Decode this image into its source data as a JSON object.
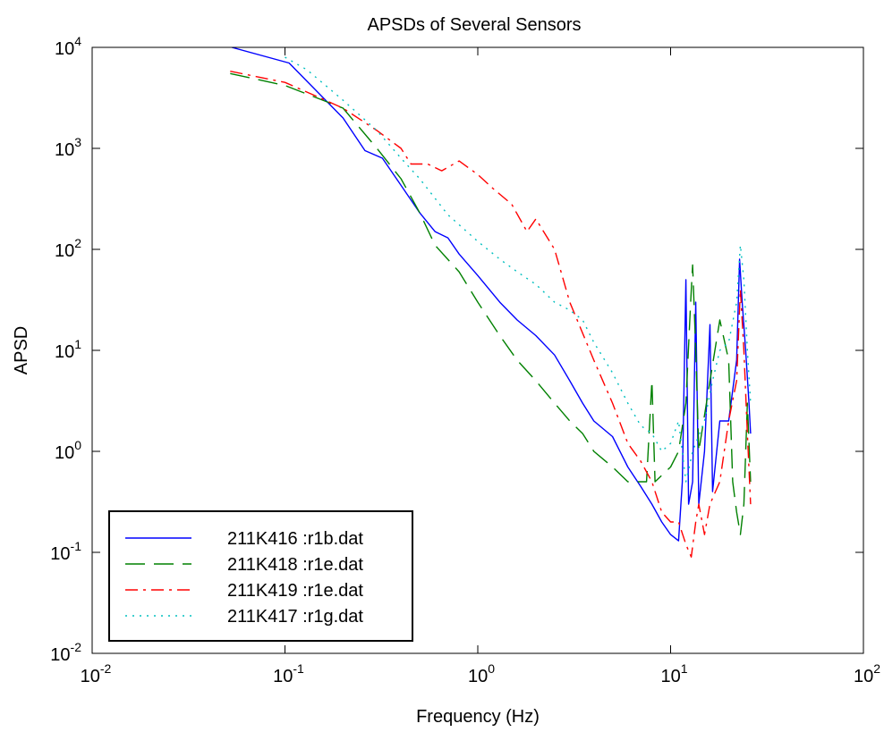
{
  "chart_data": {
    "type": "line",
    "title": "APSDs of Several Sensors",
    "xlabel": "Frequency (Hz)",
    "ylabel": "APSD",
    "xscale": "log",
    "yscale": "log",
    "xlim": [
      0.01,
      100
    ],
    "ylim": [
      0.01,
      10000
    ],
    "x_ticks": [
      {
        "value": 0.01,
        "base": "10",
        "exp": "-2"
      },
      {
        "value": 0.1,
        "base": "10",
        "exp": "-1"
      },
      {
        "value": 1,
        "base": "10",
        "exp": "0"
      },
      {
        "value": 10,
        "base": "10",
        "exp": "1"
      },
      {
        "value": 100,
        "base": "10",
        "exp": "2"
      }
    ],
    "y_ticks": [
      {
        "value": 0.01,
        "base": "10",
        "exp": "-2"
      },
      {
        "value": 0.1,
        "base": "10",
        "exp": "-1"
      },
      {
        "value": 1,
        "base": "10",
        "exp": "0"
      },
      {
        "value": 10,
        "base": "10",
        "exp": "1"
      },
      {
        "value": 100,
        "base": "10",
        "exp": "2"
      },
      {
        "value": 1000,
        "base": "10",
        "exp": "3"
      },
      {
        "value": 10000,
        "base": "10",
        "exp": "4"
      }
    ],
    "grid": false,
    "legend_position": "bottom-left",
    "series": [
      {
        "name": "211K416 :r1b.dat",
        "color": "#0000ff",
        "dash": "solid",
        "points": [
          [
            0.053,
            10000
          ],
          [
            0.105,
            7000
          ],
          [
            0.2,
            2000
          ],
          [
            0.26,
            950
          ],
          [
            0.32,
            800
          ],
          [
            0.4,
            430
          ],
          [
            0.5,
            230
          ],
          [
            0.6,
            150
          ],
          [
            0.7,
            130
          ],
          [
            0.8,
            90
          ],
          [
            1.0,
            55
          ],
          [
            1.3,
            30
          ],
          [
            1.6,
            20
          ],
          [
            2.0,
            14
          ],
          [
            2.5,
            9
          ],
          [
            3.0,
            5
          ],
          [
            3.5,
            3
          ],
          [
            4.0,
            2
          ],
          [
            5.0,
            1.4
          ],
          [
            6.0,
            0.7
          ],
          [
            7.0,
            0.45
          ],
          [
            8.0,
            0.3
          ],
          [
            9.0,
            0.2
          ],
          [
            10.0,
            0.15
          ],
          [
            11.0,
            0.13
          ],
          [
            11.5,
            0.5
          ],
          [
            12.0,
            50
          ],
          [
            12.4,
            0.3
          ],
          [
            13.0,
            0.5
          ],
          [
            13.5,
            30
          ],
          [
            14.0,
            0.3
          ],
          [
            15.0,
            1.0
          ],
          [
            16.0,
            18
          ],
          [
            16.5,
            0.4
          ],
          [
            18.0,
            2.0
          ],
          [
            20.0,
            2.0
          ],
          [
            22.0,
            8
          ],
          [
            22.8,
            80
          ],
          [
            23.5,
            30
          ],
          [
            24.5,
            10
          ],
          [
            25.5,
            3
          ],
          [
            26.0,
            1.5
          ]
        ]
      },
      {
        "name": "211K418 :r1e.dat",
        "color": "#008000",
        "dash": "long",
        "points": [
          [
            0.052,
            5500
          ],
          [
            0.1,
            4200
          ],
          [
            0.2,
            2500
          ],
          [
            0.3,
            1000
          ],
          [
            0.4,
            500
          ],
          [
            0.5,
            230
          ],
          [
            0.6,
            110
          ],
          [
            0.8,
            60
          ],
          [
            1.0,
            30
          ],
          [
            1.3,
            14
          ],
          [
            1.6,
            8
          ],
          [
            2.0,
            5
          ],
          [
            2.5,
            3
          ],
          [
            3.0,
            2
          ],
          [
            3.5,
            1.5
          ],
          [
            4.0,
            1.0
          ],
          [
            5.0,
            0.7
          ],
          [
            6.0,
            0.5
          ],
          [
            7.0,
            0.5
          ],
          [
            7.5,
            0.5
          ],
          [
            8.0,
            5
          ],
          [
            8.3,
            0.5
          ],
          [
            10.0,
            0.7
          ],
          [
            11.0,
            1.0
          ],
          [
            12.0,
            3
          ],
          [
            12.7,
            30
          ],
          [
            13.0,
            70
          ],
          [
            13.5,
            10
          ],
          [
            14.0,
            1
          ],
          [
            16.0,
            5
          ],
          [
            18.0,
            20
          ],
          [
            20.0,
            8
          ],
          [
            21.0,
            0.5
          ],
          [
            22.0,
            0.25
          ],
          [
            23.0,
            0.15
          ],
          [
            24.0,
            0.3
          ],
          [
            25.0,
            3
          ],
          [
            26.0,
            0.5
          ]
        ]
      },
      {
        "name": "211K419 :r1e.dat",
        "color": "#ff0000",
        "dash": "dashdot",
        "points": [
          [
            0.052,
            5800
          ],
          [
            0.1,
            4500
          ],
          [
            0.15,
            3200
          ],
          [
            0.2,
            2500
          ],
          [
            0.3,
            1500
          ],
          [
            0.4,
            1000
          ],
          [
            0.45,
            700
          ],
          [
            0.55,
            700
          ],
          [
            0.65,
            600
          ],
          [
            0.8,
            750
          ],
          [
            1.0,
            550
          ],
          [
            1.2,
            400
          ],
          [
            1.5,
            280
          ],
          [
            1.8,
            150
          ],
          [
            2.0,
            200
          ],
          [
            2.5,
            100
          ],
          [
            3.0,
            30
          ],
          [
            4.0,
            8
          ],
          [
            5.0,
            3
          ],
          [
            6.0,
            1.2
          ],
          [
            7.0,
            0.8
          ],
          [
            8.0,
            0.5
          ],
          [
            9.0,
            0.25
          ],
          [
            10.0,
            0.2
          ],
          [
            11.0,
            0.2
          ],
          [
            12.0,
            0.12
          ],
          [
            12.8,
            0.09
          ],
          [
            13.5,
            0.2
          ],
          [
            14.0,
            0.3
          ],
          [
            15.0,
            0.15
          ],
          [
            16.0,
            0.3
          ],
          [
            18.0,
            0.5
          ],
          [
            20.0,
            2
          ],
          [
            22.0,
            5
          ],
          [
            23.0,
            40
          ],
          [
            24.0,
            10
          ],
          [
            25.0,
            1.5
          ],
          [
            26.0,
            0.3
          ]
        ]
      },
      {
        "name": "211K417 :r1g.dat",
        "color": "#00bfbf",
        "dash": "dotted",
        "points": [
          [
            0.1,
            8000
          ],
          [
            0.13,
            6000
          ],
          [
            0.2,
            3000
          ],
          [
            0.3,
            1500
          ],
          [
            0.4,
            800
          ],
          [
            0.5,
            500
          ],
          [
            0.7,
            220
          ],
          [
            1.0,
            120
          ],
          [
            1.3,
            80
          ],
          [
            1.6,
            60
          ],
          [
            2.0,
            45
          ],
          [
            2.5,
            30
          ],
          [
            3.0,
            25
          ],
          [
            3.5,
            20
          ],
          [
            4.0,
            12
          ],
          [
            5.0,
            6
          ],
          [
            6.0,
            3
          ],
          [
            7.0,
            1.8
          ],
          [
            8.0,
            1.5
          ],
          [
            9.0,
            1.0
          ],
          [
            10.0,
            1.2
          ],
          [
            11.0,
            2
          ],
          [
            12.0,
            0.5
          ],
          [
            13.0,
            1
          ],
          [
            15.0,
            2
          ],
          [
            16.5,
            5
          ],
          [
            18.0,
            10
          ],
          [
            20.0,
            12
          ],
          [
            22.0,
            30
          ],
          [
            23.0,
            110
          ],
          [
            24.0,
            50
          ],
          [
            25.0,
            10
          ],
          [
            26.0,
            3
          ]
        ]
      }
    ]
  }
}
